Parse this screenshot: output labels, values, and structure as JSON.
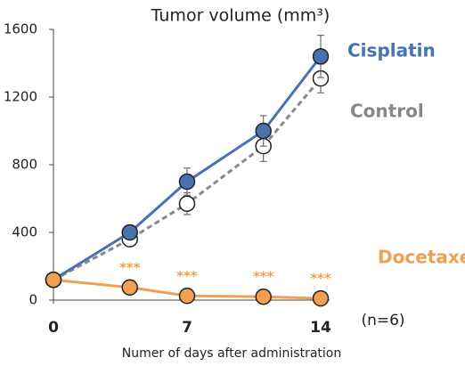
{
  "chart_data": {
    "type": "line",
    "title": "Tumor volume (mm³)",
    "x_label": "Numer of days after administration",
    "note": "(n=6)",
    "x": [
      0,
      4,
      7,
      11,
      14
    ],
    "xlim": [
      0,
      14
    ],
    "xticks": [
      0,
      7,
      14
    ],
    "ylim": [
      0,
      1600
    ],
    "yticks": [
      0,
      400,
      800,
      1200,
      1600
    ],
    "series": [
      {
        "name": "Cisplatin",
        "color": "#4a72b0",
        "values": [
          120,
          400,
          700,
          1000,
          1440
        ],
        "errors": [
          0,
          20,
          80,
          90,
          125
        ]
      },
      {
        "name": "Control",
        "color": "#888888",
        "dashed": true,
        "marker_fill": "#ffffff",
        "values": [
          120,
          360,
          570,
          910,
          1310
        ],
        "errors": [
          0,
          20,
          65,
          90,
          85
        ]
      },
      {
        "name": "Docetaxel",
        "color": "#f0a050",
        "values": [
          120,
          75,
          25,
          20,
          10
        ],
        "annotations": [
          null,
          "***",
          "***",
          "***",
          "***"
        ]
      }
    ]
  }
}
